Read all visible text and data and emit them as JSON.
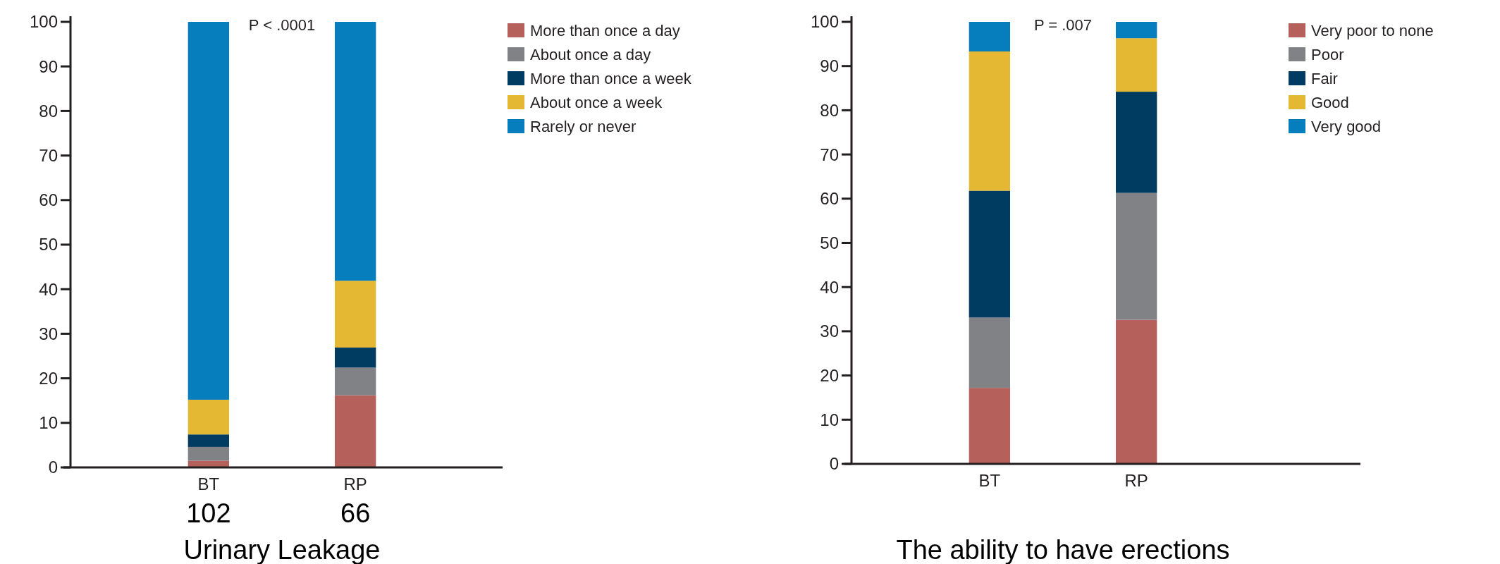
{
  "chart_data": [
    {
      "type": "bar",
      "stacked": true,
      "title": "Urinary Leakage",
      "categories": [
        "BT",
        "RP"
      ],
      "ylim": [
        0,
        100
      ],
      "yticks": [
        0,
        10,
        20,
        30,
        40,
        50,
        60,
        70,
        80,
        90,
        100
      ],
      "legend": "top right",
      "annotations": [
        "P < .0001",
        "102",
        "66"
      ],
      "series": [
        {
          "name": "More than once a day",
          "color": "#b5605a",
          "values": [
            1.5,
            16.2
          ]
        },
        {
          "name": "About once a day",
          "color": "#808285",
          "values": [
            3.1,
            6.2
          ]
        },
        {
          "name": "More than once a week",
          "color": "#003b62",
          "values": [
            2.8,
            4.5
          ]
        },
        {
          "name": "About once a week",
          "color": "#e4b832",
          "values": [
            7.8,
            15.0
          ]
        },
        {
          "name": "Rarely or never",
          "color": "#067dbd",
          "values": [
            84.8,
            58.1
          ]
        }
      ]
    },
    {
      "type": "bar",
      "stacked": true,
      "title": "The ability to have erections",
      "categories": [
        "BT",
        "RP"
      ],
      "ylim": [
        0,
        100
      ],
      "yticks": [
        0,
        10,
        20,
        30,
        40,
        50,
        60,
        70,
        80,
        90,
        100
      ],
      "legend": "top right",
      "annotations": [
        "P = .007"
      ],
      "series": [
        {
          "name": "Very poor to none",
          "color": "#b5605a",
          "values": [
            17.2,
            32.6
          ]
        },
        {
          "name": "Poor",
          "color": "#808285",
          "values": [
            15.9,
            28.7
          ]
        },
        {
          "name": "Fair",
          "color": "#003b62",
          "values": [
            28.7,
            22.9
          ]
        },
        {
          "name": "Good",
          "color": "#e4b832",
          "values": [
            31.5,
            12.1
          ]
        },
        {
          "name": "Very good",
          "color": "#067dbd",
          "values": [
            6.7,
            3.7
          ]
        }
      ]
    }
  ]
}
